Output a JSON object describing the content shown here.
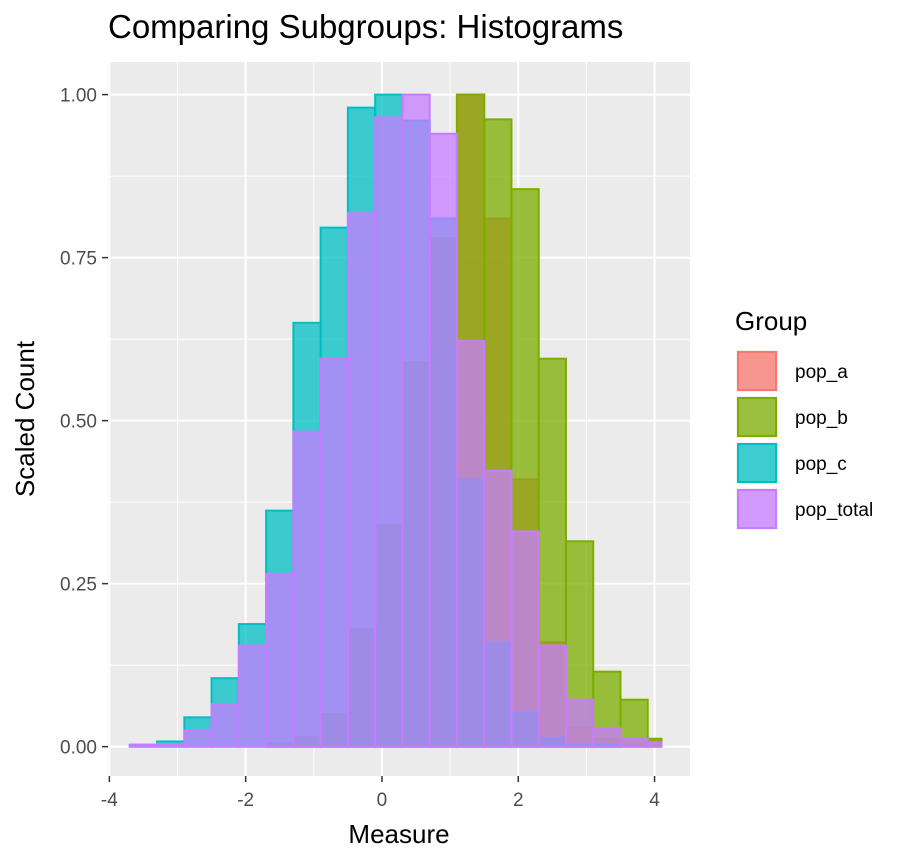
{
  "chart_data": {
    "type": "bar",
    "title": "Comparing Subgroups: Histograms",
    "xlabel": "Measure",
    "ylabel": "Scaled Count",
    "xlim": [
      -4.02,
      4.52
    ],
    "ylim": [
      -0.045,
      1.05
    ],
    "x_ticks": [
      -4,
      -2,
      0,
      2,
      4
    ],
    "x_tick_labels": [
      "-4",
      "-2",
      "0",
      "2",
      "4"
    ],
    "y_ticks": [
      0,
      0.25,
      0.5,
      0.75,
      1
    ],
    "y_tick_labels": [
      "0.00",
      "0.25",
      "0.50",
      "0.75",
      "1.00"
    ],
    "grid": true,
    "legend": {
      "title": "Group",
      "position": "right"
    },
    "bin_edges": [
      -3.7,
      -3.3,
      -2.9,
      -2.5,
      -2.1,
      -1.7,
      -1.3,
      -0.9,
      -0.5,
      -0.1,
      0.3,
      0.7,
      1.1,
      1.5,
      1.9,
      2.3,
      2.7,
      3.1,
      3.5,
      3.9,
      4.1
    ],
    "series": [
      {
        "name": "pop_a",
        "color": "#F8766D",
        "values": [
          0.0,
          0.0,
          0.0,
          0.0,
          0.0,
          0.005,
          0.015,
          0.05,
          0.18,
          0.34,
          0.59,
          0.78,
          1.0,
          0.81,
          0.41,
          0.16,
          0.03,
          0.012,
          0.003,
          0.012,
          0.003
        ]
      },
      {
        "name": "pop_b",
        "color": "#7CAE00",
        "values": [
          0.0,
          0.0,
          0.0,
          0.0,
          0.0,
          0.004,
          0.012,
          0.05,
          0.18,
          0.34,
          0.59,
          0.78,
          1.0,
          0.962,
          0.855,
          0.595,
          0.315,
          0.115,
          0.072,
          0.012,
          0.006
        ]
      },
      {
        "name": "pop_c",
        "color": "#00BFC4",
        "values": [
          0.003,
          0.008,
          0.045,
          0.105,
          0.188,
          0.362,
          0.65,
          0.796,
          0.98,
          1.0,
          0.96,
          0.81,
          0.41,
          0.16,
          0.052,
          0.013,
          0.003,
          0.003,
          0.0,
          0.0,
          0.0
        ]
      },
      {
        "name": "pop_total",
        "color": "#C77CFF",
        "values": [
          0.003,
          0.004,
          0.025,
          0.065,
          0.155,
          0.265,
          0.483,
          0.595,
          0.818,
          0.965,
          1.0,
          0.94,
          0.622,
          0.423,
          0.33,
          0.155,
          0.072,
          0.028,
          0.012,
          0.006,
          0.003
        ]
      }
    ]
  }
}
